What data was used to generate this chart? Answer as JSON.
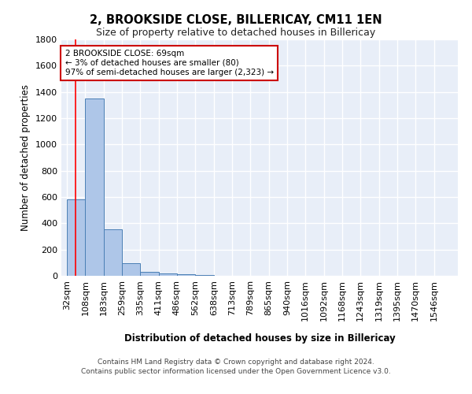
{
  "title": "2, BROOKSIDE CLOSE, BILLERICAY, CM11 1EN",
  "subtitle": "Size of property relative to detached houses in Billericay",
  "xlabel": "Distribution of detached houses by size in Billericay",
  "ylabel": "Number of detached properties",
  "bin_labels": [
    "32sqm",
    "108sqm",
    "183sqm",
    "259sqm",
    "335sqm",
    "411sqm",
    "486sqm",
    "562sqm",
    "638sqm",
    "713sqm",
    "789sqm",
    "865sqm",
    "940sqm",
    "1016sqm",
    "1092sqm",
    "1168sqm",
    "1243sqm",
    "1319sqm",
    "1395sqm",
    "1470sqm",
    "1546sqm"
  ],
  "bin_edges": [
    32,
    108,
    183,
    259,
    335,
    411,
    486,
    562,
    638,
    713,
    789,
    865,
    940,
    1016,
    1092,
    1168,
    1243,
    1319,
    1395,
    1470,
    1546
  ],
  "bar_heights": [
    580,
    1350,
    355,
    95,
    30,
    20,
    15,
    5,
    2,
    1,
    0,
    0,
    0,
    0,
    0,
    0,
    0,
    0,
    0,
    0
  ],
  "bar_color": "#aec6e8",
  "bar_edge_color": "#4a7fb5",
  "axes_bg_color": "#e8eef8",
  "red_line_x": 69,
  "annotation_text": "2 BROOKSIDE CLOSE: 69sqm\n← 3% of detached houses are smaller (80)\n97% of semi-detached houses are larger (2,323) →",
  "annotation_border_color": "#cc0000",
  "ylim": [
    0,
    1800
  ],
  "yticks": [
    0,
    200,
    400,
    600,
    800,
    1000,
    1200,
    1400,
    1600,
    1800
  ],
  "footer_line1": "Contains HM Land Registry data © Crown copyright and database right 2024.",
  "footer_line2": "Contains public sector information licensed under the Open Government Licence v3.0."
}
